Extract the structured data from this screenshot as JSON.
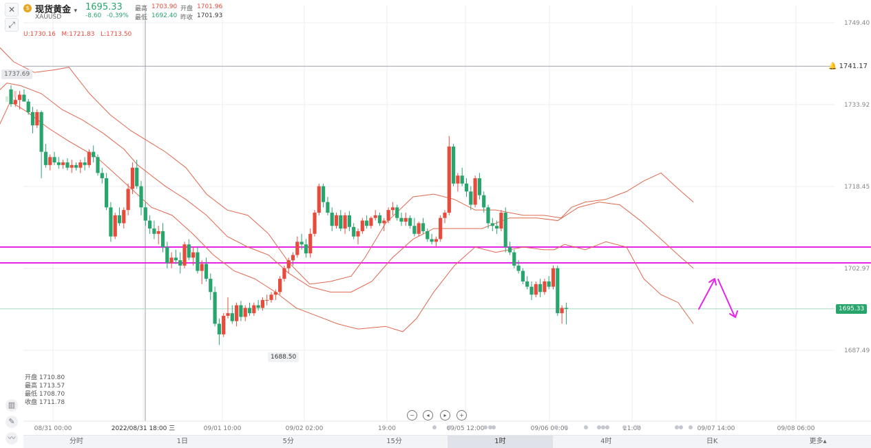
{
  "header": {
    "symbol_name": "现货黄金",
    "dropdown_glyph": "▾",
    "symbol_code": "XAUUSD",
    "price": "1695.33",
    "change": "-8.60",
    "change_pct": "-0.39%",
    "high_label": "最高",
    "high": "1703.90",
    "open_label": "开盘",
    "open": "1701.96",
    "low_label": "最低",
    "low": "1692.40",
    "prev_close_label": "昨收",
    "prev_close": "1701.93",
    "close_icon": "close-icon",
    "draw_icon": "draw-line-icon"
  },
  "boll": "U:1730.16   M:1721.83   L:1713.50",
  "ohlc_panel": {
    "open": "开盘 1710.80",
    "high": "最高 1713.57",
    "low": "最低 1708.70",
    "close": "收盘 1711.78"
  },
  "labels": {
    "alert_price": "1741.17",
    "current_price": "1695.33",
    "low_marker": "1688.50",
    "left_price": "1737.69"
  },
  "colors": {
    "up": "#e64b3c",
    "down": "#27a56d",
    "boll": "#e0674e",
    "level": "#e624e6"
  },
  "tabs": [
    "分时",
    "1日",
    "5分",
    "15分",
    "1时",
    "4时",
    "日K",
    "更多▴"
  ],
  "active_tab": "1时",
  "chart_data": {
    "type": "candlestick",
    "symbol": "XAUUSD",
    "timeframe": "1时",
    "y_ticks": [
      "1749.40",
      "1733.92",
      "1718.45",
      "1702.97",
      "1687.49"
    ],
    "ylim": [
      1683,
      1753
    ],
    "x_ticks": [
      "08/31 00:00",
      "2022/08/31 18:00 三",
      "09/01 10:00",
      "09/02 02:00",
      "19:00",
      "09/05 12:00",
      "09/06 04:00",
      "21:00",
      "09/07 14:00",
      "09/08 06:00"
    ],
    "horizontal_levels": [
      1707.0,
      1704.0
    ],
    "alert_line": 1741.17,
    "current_price": 1695.33,
    "low_marker": 1688.5,
    "candles": [
      [
        1736.8,
        1737.6,
        1733.5,
        1734.0
      ],
      [
        1734.0,
        1735.8,
        1733.5,
        1734.8
      ],
      [
        1734.8,
        1736.5,
        1733.0,
        1735.8
      ],
      [
        1735.8,
        1736.8,
        1734.5,
        1734.5
      ],
      [
        1734.5,
        1735.0,
        1732.0,
        1732.5
      ],
      [
        1732.5,
        1733.5,
        1728.5,
        1730.0
      ],
      [
        1730.0,
        1733.0,
        1729.5,
        1732.5
      ],
      [
        1732.5,
        1732.8,
        1720.0,
        1725.0
      ],
      [
        1725.0,
        1726.5,
        1722.0,
        1722.5
      ],
      [
        1722.5,
        1724.5,
        1721.5,
        1724.0
      ],
      [
        1724.0,
        1725.0,
        1722.5,
        1723.0
      ],
      [
        1723.0,
        1724.0,
        1721.8,
        1722.5
      ],
      [
        1722.5,
        1723.5,
        1721.8,
        1723.0
      ],
      [
        1723.0,
        1723.8,
        1721.5,
        1722.0
      ],
      [
        1722.0,
        1723.5,
        1721.0,
        1722.5
      ],
      [
        1722.5,
        1723.0,
        1721.5,
        1722.0
      ],
      [
        1722.0,
        1723.5,
        1721.0,
        1723.0
      ],
      [
        1723.0,
        1724.0,
        1721.5,
        1722.5
      ],
      [
        1722.5,
        1725.5,
        1722.0,
        1725.0
      ],
      [
        1725.0,
        1726.2,
        1723.0,
        1724.0
      ],
      [
        1724.0,
        1724.5,
        1720.5,
        1721.0
      ],
      [
        1721.0,
        1722.0,
        1719.0,
        1720.0
      ],
      [
        1720.0,
        1721.0,
        1714.0,
        1714.5
      ],
      [
        1714.5,
        1715.5,
        1708.0,
        1709.0
      ],
      [
        1709.0,
        1713.5,
        1708.5,
        1713.0
      ],
      [
        1713.0,
        1714.5,
        1711.0,
        1711.5
      ],
      [
        1711.5,
        1714.5,
        1710.5,
        1714.0
      ],
      [
        1714.0,
        1719.0,
        1713.0,
        1718.0
      ],
      [
        1718.0,
        1723.0,
        1717.0,
        1722.0
      ],
      [
        1722.0,
        1723.5,
        1718.0,
        1718.5
      ],
      [
        1718.5,
        1719.5,
        1713.0,
        1714.5
      ],
      [
        1714.5,
        1715.5,
        1711.0,
        1712.0
      ],
      [
        1712.0,
        1713.0,
        1709.5,
        1710.5
      ],
      [
        1710.5,
        1712.0,
        1708.5,
        1709.5
      ],
      [
        1709.5,
        1711.0,
        1707.5,
        1710.0
      ],
      [
        1710.0,
        1711.5,
        1706.0,
        1707.0
      ],
      [
        1707.0,
        1708.0,
        1703.0,
        1704.0
      ],
      [
        1704.0,
        1706.0,
        1703.0,
        1705.0
      ],
      [
        1705.0,
        1706.5,
        1703.8,
        1704.5
      ],
      [
        1704.5,
        1706.0,
        1702.0,
        1703.5
      ],
      [
        1703.5,
        1708.0,
        1703.0,
        1707.5
      ],
      [
        1707.5,
        1708.5,
        1704.5,
        1705.0
      ],
      [
        1705.0,
        1707.0,
        1703.5,
        1706.0
      ],
      [
        1706.0,
        1707.0,
        1702.0,
        1702.5
      ],
      [
        1702.5,
        1704.5,
        1700.0,
        1703.8
      ],
      [
        1703.8,
        1705.0,
        1700.5,
        1701.0
      ],
      [
        1701.0,
        1702.0,
        1697.0,
        1698.5
      ],
      [
        1698.5,
        1699.5,
        1692.0,
        1692.5
      ],
      [
        1692.5,
        1693.5,
        1688.5,
        1690.5
      ],
      [
        1690.5,
        1694.5,
        1690.0,
        1694.0
      ],
      [
        1694.0,
        1697.5,
        1693.5,
        1694.5
      ],
      [
        1694.5,
        1696.0,
        1692.5,
        1693.0
      ],
      [
        1693.0,
        1696.5,
        1692.0,
        1696.0
      ],
      [
        1696.0,
        1696.8,
        1693.0,
        1693.8
      ],
      [
        1693.8,
        1696.0,
        1693.0,
        1695.5
      ],
      [
        1695.5,
        1696.5,
        1694.0,
        1694.5
      ],
      [
        1694.5,
        1696.5,
        1694.0,
        1696.0
      ],
      [
        1696.0,
        1697.0,
        1695.0,
        1695.5
      ],
      [
        1695.5,
        1697.5,
        1695.0,
        1697.0
      ],
      [
        1697.0,
        1698.0,
        1696.0,
        1697.0
      ],
      [
        1697.0,
        1698.5,
        1696.5,
        1698.0
      ],
      [
        1698.0,
        1699.0,
        1697.0,
        1698.5
      ],
      [
        1698.5,
        1701.5,
        1698.0,
        1701.0
      ],
      [
        1701.0,
        1703.5,
        1700.5,
        1703.0
      ],
      [
        1703.0,
        1705.0,
        1702.0,
        1704.5
      ],
      [
        1704.5,
        1706.0,
        1703.5,
        1705.5
      ],
      [
        1705.5,
        1709.0,
        1705.0,
        1708.0
      ],
      [
        1708.0,
        1709.5,
        1706.5,
        1707.5
      ],
      [
        1707.5,
        1708.5,
        1705.0,
        1705.8
      ],
      [
        1705.8,
        1710.5,
        1705.0,
        1709.5
      ],
      [
        1709.5,
        1714.0,
        1709.0,
        1713.5
      ],
      [
        1713.5,
        1719.0,
        1713.0,
        1718.5
      ],
      [
        1718.5,
        1719.0,
        1714.5,
        1715.5
      ],
      [
        1715.5,
        1716.5,
        1713.0,
        1713.5
      ],
      [
        1713.5,
        1714.5,
        1710.0,
        1711.0
      ],
      [
        1711.0,
        1713.5,
        1710.5,
        1713.0
      ],
      [
        1713.0,
        1714.0,
        1710.0,
        1710.5
      ],
      [
        1710.5,
        1713.5,
        1709.5,
        1713.0
      ],
      [
        1713.0,
        1713.8,
        1710.0,
        1710.8
      ],
      [
        1710.8,
        1711.5,
        1708.5,
        1709.0
      ],
      [
        1709.0,
        1710.5,
        1707.5,
        1710.0
      ],
      [
        1710.0,
        1712.5,
        1709.5,
        1712.0
      ],
      [
        1712.0,
        1713.0,
        1710.5,
        1711.0
      ],
      [
        1711.0,
        1712.8,
        1710.5,
        1712.5
      ],
      [
        1712.5,
        1714.0,
        1712.0,
        1713.0
      ],
      [
        1713.0,
        1713.5,
        1711.0,
        1711.5
      ],
      [
        1711.5,
        1712.5,
        1710.0,
        1712.0
      ],
      [
        1712.0,
        1714.5,
        1711.5,
        1714.0
      ],
      [
        1714.0,
        1715.5,
        1713.0,
        1714.5
      ],
      [
        1714.5,
        1715.0,
        1712.0,
        1712.5
      ],
      [
        1712.5,
        1713.5,
        1711.0,
        1711.8
      ],
      [
        1711.8,
        1713.5,
        1711.0,
        1712.5
      ],
      [
        1712.5,
        1713.0,
        1710.5,
        1711.0
      ],
      [
        1711.0,
        1712.5,
        1709.0,
        1709.5
      ],
      [
        1709.5,
        1711.8,
        1709.0,
        1711.5
      ],
      [
        1711.5,
        1712.5,
        1709.5,
        1710.0
      ],
      [
        1710.0,
        1710.5,
        1708.0,
        1708.5
      ],
      [
        1708.5,
        1709.5,
        1707.5,
        1708.0
      ],
      [
        1708.0,
        1709.0,
        1707.0,
        1708.5
      ],
      [
        1708.5,
        1713.0,
        1708.0,
        1712.5
      ],
      [
        1712.5,
        1714.0,
        1711.5,
        1713.5
      ],
      [
        1713.5,
        1728.0,
        1713.0,
        1726.0
      ],
      [
        1726.0,
        1726.5,
        1718.5,
        1719.0
      ],
      [
        1719.0,
        1721.0,
        1717.5,
        1720.5
      ],
      [
        1720.5,
        1722.0,
        1718.5,
        1719.0
      ],
      [
        1719.0,
        1720.0,
        1716.5,
        1717.5
      ],
      [
        1717.5,
        1718.5,
        1714.0,
        1715.0
      ],
      [
        1715.0,
        1720.5,
        1714.5,
        1720.0
      ],
      [
        1720.0,
        1721.0,
        1716.0,
        1716.8
      ],
      [
        1716.8,
        1717.5,
        1713.5,
        1714.5
      ],
      [
        1714.5,
        1715.0,
        1710.5,
        1711.5
      ],
      [
        1711.5,
        1712.5,
        1710.0,
        1711.0
      ],
      [
        1711.0,
        1712.0,
        1709.5,
        1710.5
      ],
      [
        1710.5,
        1714.0,
        1710.0,
        1713.5
      ],
      [
        1713.5,
        1714.5,
        1706.0,
        1707.0
      ],
      [
        1707.0,
        1708.0,
        1705.5,
        1706.0
      ],
      [
        1706.0,
        1706.5,
        1703.0,
        1703.5
      ],
      [
        1703.5,
        1704.5,
        1702.0,
        1702.5
      ],
      [
        1702.5,
        1703.0,
        1700.0,
        1700.5
      ],
      [
        1700.5,
        1701.5,
        1699.0,
        1699.5
      ],
      [
        1699.5,
        1700.5,
        1697.0,
        1698.0
      ],
      [
        1698.0,
        1700.5,
        1697.5,
        1700.0
      ],
      [
        1700.0,
        1701.0,
        1697.5,
        1698.5
      ],
      [
        1698.5,
        1701.0,
        1698.0,
        1700.5
      ],
      [
        1700.5,
        1701.5,
        1699.0,
        1699.5
      ],
      [
        1699.5,
        1703.5,
        1699.0,
        1703.0
      ],
      [
        1703.0,
        1703.5,
        1694.0,
        1694.5
      ],
      [
        1694.5,
        1696.0,
        1692.5,
        1695.5
      ],
      [
        1695.5,
        1696.5,
        1692.4,
        1695.3
      ]
    ],
    "bollinger": {
      "upper": [
        [
          -10,
          1746.0
        ],
        [
          5,
          1744.0
        ],
        [
          20,
          1742.0
        ],
        [
          50,
          1740.0
        ],
        [
          80,
          1740.5
        ],
        [
          100,
          1741.0
        ],
        [
          130,
          1736.0
        ],
        [
          160,
          1732.0
        ],
        [
          190,
          1729.0
        ],
        [
          215,
          1727.0
        ],
        [
          240,
          1725.0
        ],
        [
          270,
          1722.0
        ],
        [
          300,
          1717.0
        ],
        [
          330,
          1714.0
        ],
        [
          360,
          1713.0
        ],
        [
          390,
          1709.5
        ],
        [
          420,
          1704.0
        ],
        [
          450,
          1700.0
        ],
        [
          480,
          1700.5
        ],
        [
          510,
          1701.5
        ],
        [
          530,
          1705.0
        ],
        [
          560,
          1711.5
        ],
        [
          600,
          1716.5
        ],
        [
          630,
          1717.0
        ],
        [
          660,
          1716.0
        ],
        [
          690,
          1714.0
        ],
        [
          720,
          1714.0
        ],
        [
          760,
          1713.0
        ],
        [
          790,
          1713.0
        ],
        [
          815,
          1712.5
        ],
        [
          830,
          1714.5
        ],
        [
          850,
          1715.5
        ],
        [
          880,
          1716.0
        ],
        [
          910,
          1717.5
        ],
        [
          935,
          1719.5
        ],
        [
          960,
          1721.0
        ],
        [
          985,
          1718.0
        ],
        [
          1007,
          1715.5
        ]
      ],
      "middle": [
        [
          -10,
          1735.5
        ],
        [
          10,
          1738.0
        ],
        [
          30,
          1737.5
        ],
        [
          60,
          1736.0
        ],
        [
          90,
          1733.0
        ],
        [
          120,
          1731.0
        ],
        [
          150,
          1728.5
        ],
        [
          180,
          1725.5
        ],
        [
          200,
          1722.5
        ],
        [
          240,
          1718.5
        ],
        [
          270,
          1716.0
        ],
        [
          300,
          1713.0
        ],
        [
          330,
          1709.0
        ],
        [
          360,
          1707.0
        ],
        [
          390,
          1705.5
        ],
        [
          420,
          1702.0
        ],
        [
          450,
          1699.5
        ],
        [
          480,
          1698.5
        ],
        [
          510,
          1698.5
        ],
        [
          540,
          1700.5
        ],
        [
          570,
          1705.0
        ],
        [
          600,
          1708.5
        ],
        [
          630,
          1710.5
        ],
        [
          660,
          1710.5
        ],
        [
          700,
          1710.5
        ],
        [
          740,
          1712.5
        ],
        [
          780,
          1712.5
        ],
        [
          810,
          1712.0
        ],
        [
          840,
          1714.5
        ],
        [
          870,
          1715.5
        ],
        [
          900,
          1715.0
        ],
        [
          930,
          1712.0
        ],
        [
          960,
          1708.5
        ],
        [
          985,
          1705.5
        ],
        [
          1007,
          1703.0
        ]
      ],
      "lower": [
        [
          -10,
          1727.5
        ],
        [
          15,
          1734.5
        ],
        [
          40,
          1732.5
        ],
        [
          70,
          1729.5
        ],
        [
          100,
          1727.0
        ],
        [
          140,
          1724.0
        ],
        [
          170,
          1720.5
        ],
        [
          195,
          1717.5
        ],
        [
          220,
          1714.5
        ],
        [
          250,
          1713.0
        ],
        [
          280,
          1709.5
        ],
        [
          310,
          1705.5
        ],
        [
          340,
          1702.5
        ],
        [
          370,
          1701.0
        ],
        [
          400,
          1698.5
        ],
        [
          430,
          1695.5
        ],
        [
          460,
          1694.0
        ],
        [
          490,
          1692.5
        ],
        [
          520,
          1691.5
        ],
        [
          560,
          1692.0
        ],
        [
          585,
          1691.0
        ],
        [
          605,
          1693.5
        ],
        [
          630,
          1698.5
        ],
        [
          660,
          1703.5
        ],
        [
          690,
          1707.0
        ],
        [
          720,
          1706.0
        ],
        [
          760,
          1707.0
        ],
        [
          790,
          1706.5
        ],
        [
          805,
          1706.5
        ],
        [
          820,
          1707.5
        ],
        [
          850,
          1706.5
        ],
        [
          880,
          1708.0
        ],
        [
          910,
          1707.0
        ],
        [
          935,
          1701.0
        ],
        [
          960,
          1698.0
        ],
        [
          985,
          1696.5
        ],
        [
          1007,
          1692.5
        ]
      ]
    }
  }
}
